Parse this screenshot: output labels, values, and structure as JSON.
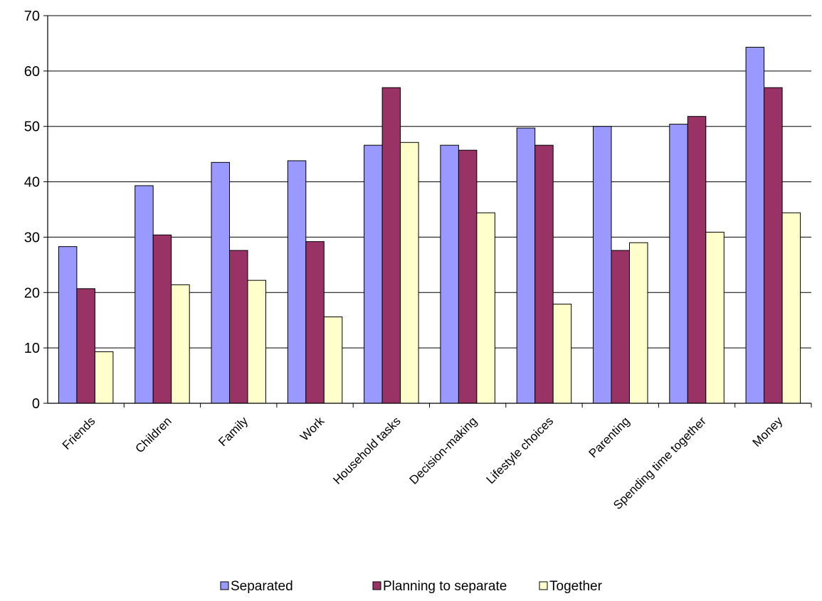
{
  "chart_data": {
    "type": "bar",
    "title": "",
    "xlabel": "",
    "ylabel": "",
    "ylim": [
      0,
      70
    ],
    "yticks": [
      0,
      10,
      20,
      30,
      40,
      50,
      60,
      70
    ],
    "grid": true,
    "legend_position": "bottom",
    "categories": [
      "Friends",
      "Children",
      "Family",
      "Work",
      "Household tasks",
      "Decision-making",
      "Lifestyle choices",
      "Parenting",
      "Spending time together",
      "Money"
    ],
    "series": [
      {
        "name": "Separated",
        "color": "#9999ff",
        "values": [
          28.3,
          39.3,
          43.5,
          43.8,
          46.6,
          46.6,
          49.7,
          50.0,
          50.4,
          64.3
        ]
      },
      {
        "name": "Planning to separate",
        "color": "#993366",
        "values": [
          20.7,
          30.4,
          27.6,
          29.2,
          57.0,
          45.7,
          46.6,
          27.6,
          51.8,
          57.0
        ]
      },
      {
        "name": "Together",
        "color": "#ffffcc",
        "values": [
          9.3,
          21.4,
          22.2,
          15.6,
          47.1,
          34.4,
          17.9,
          29.0,
          30.9,
          34.4
        ]
      }
    ]
  }
}
